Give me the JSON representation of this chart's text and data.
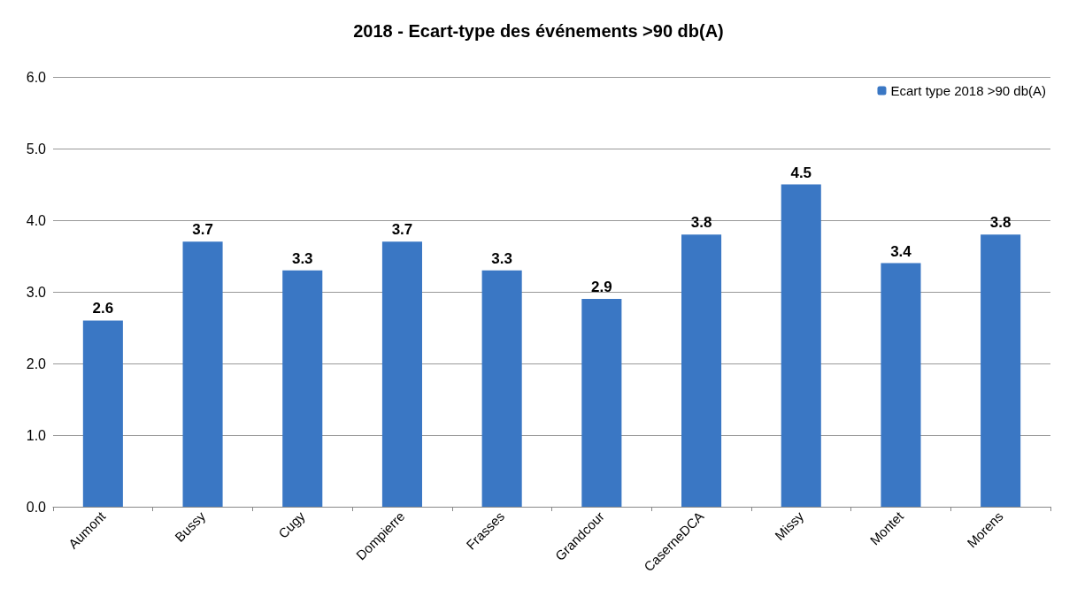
{
  "chart_data": {
    "type": "bar",
    "title": "2018 - Ecart-type des événements >90 db(A)",
    "categories": [
      "Aumont",
      "Bussy",
      "Cugy",
      "Dompierre",
      "Frasses",
      "Grandcour",
      "CaserneDCA",
      "Missy",
      "Montet",
      "Morens"
    ],
    "series": [
      {
        "name": "Ecart type 2018 >90 db(A)",
        "color": "#3a77c4",
        "values": [
          2.6,
          3.7,
          3.3,
          3.7,
          3.3,
          2.9,
          3.8,
          4.5,
          3.4,
          3.8
        ]
      }
    ],
    "ylim": [
      0,
      6
    ],
    "yticks": [
      {
        "value": 0,
        "label": "0.0"
      },
      {
        "value": 1,
        "label": "1.0"
      },
      {
        "value": 2,
        "label": "2.0"
      },
      {
        "value": 3,
        "label": "3.0"
      },
      {
        "value": 4,
        "label": "4.0"
      },
      {
        "value": 5,
        "label": "5.0"
      },
      {
        "value": 6,
        "label": "6.0"
      }
    ],
    "grid": "y",
    "legend": "top right",
    "data_labels": true
  }
}
